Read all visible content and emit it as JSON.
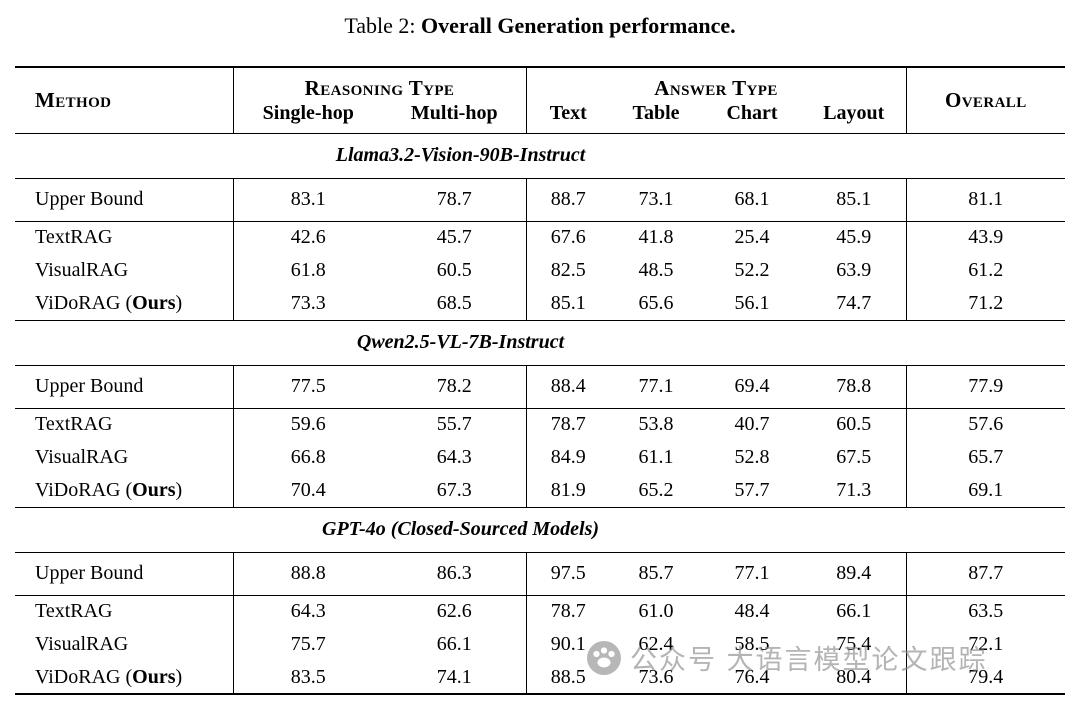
{
  "caption": {
    "prefix": "Table 2: ",
    "title": "Overall Generation performance."
  },
  "table": {
    "headers": {
      "method": "Method",
      "reasoning_group": "Reasoning Type",
      "answer_group": "Answer Type",
      "overall": "Overall",
      "sub_columns": [
        "Single-hop",
        "Multi-hop",
        "Text",
        "Table",
        "Chart",
        "Layout"
      ]
    },
    "sections": [
      {
        "title": "Llama3.2-Vision-90B-Instruct",
        "rows": [
          {
            "method": "Upper Bound",
            "type": "upper",
            "values": [
              "83.1",
              "78.7",
              "88.7",
              "73.1",
              "68.1",
              "85.1",
              "81.1"
            ]
          },
          {
            "method": "TextRAG",
            "type": "method",
            "values": [
              "42.6",
              "45.7",
              "67.6",
              "41.8",
              "25.4",
              "45.9",
              "43.9"
            ]
          },
          {
            "method": "VisualRAG",
            "type": "method",
            "values": [
              "61.8",
              "60.5",
              "82.5",
              "48.5",
              "52.2",
              "63.9",
              "61.2"
            ]
          },
          {
            "method": "ViDoRAG (",
            "method_bold": "Ours",
            "method_suffix": ")",
            "type": "method",
            "values": [
              "73.3",
              "68.5",
              "85.1",
              "65.6",
              "56.1",
              "74.7",
              "71.2"
            ]
          }
        ]
      },
      {
        "title": "Qwen2.5-VL-7B-Instruct",
        "rows": [
          {
            "method": "Upper Bound",
            "type": "upper",
            "values": [
              "77.5",
              "78.2",
              "88.4",
              "77.1",
              "69.4",
              "78.8",
              "77.9"
            ]
          },
          {
            "method": "TextRAG",
            "type": "method",
            "values": [
              "59.6",
              "55.7",
              "78.7",
              "53.8",
              "40.7",
              "60.5",
              "57.6"
            ]
          },
          {
            "method": "VisualRAG",
            "type": "method",
            "values": [
              "66.8",
              "64.3",
              "84.9",
              "61.1",
              "52.8",
              "67.5",
              "65.7"
            ]
          },
          {
            "method": "ViDoRAG (",
            "method_bold": "Ours",
            "method_suffix": ")",
            "type": "method",
            "values": [
              "70.4",
              "67.3",
              "81.9",
              "65.2",
              "57.7",
              "71.3",
              "69.1"
            ]
          }
        ]
      },
      {
        "title": "GPT-4o (Closed-Sourced Models)",
        "rows": [
          {
            "method": "Upper Bound",
            "type": "upper",
            "values": [
              "88.8",
              "86.3",
              "97.5",
              "85.7",
              "77.1",
              "89.4",
              "87.7"
            ]
          },
          {
            "method": "TextRAG",
            "type": "method",
            "values": [
              "64.3",
              "62.6",
              "78.7",
              "61.0",
              "48.4",
              "66.1",
              "63.5"
            ]
          },
          {
            "method": "VisualRAG",
            "type": "method",
            "values": [
              "75.7",
              "66.1",
              "90.1",
              "62.4",
              "58.5",
              "75.4",
              "72.1"
            ]
          },
          {
            "method": "ViDoRAG (",
            "method_bold": "Ours",
            "method_suffix": ")",
            "type": "method",
            "values": [
              "83.5",
              "74.1",
              "88.5",
              "73.6",
              "76.4",
              "80.4",
              "79.4"
            ]
          }
        ]
      }
    ]
  },
  "watermark": {
    "icon": "paw-icon",
    "text": "公众号 大语言模型论文跟踪"
  }
}
